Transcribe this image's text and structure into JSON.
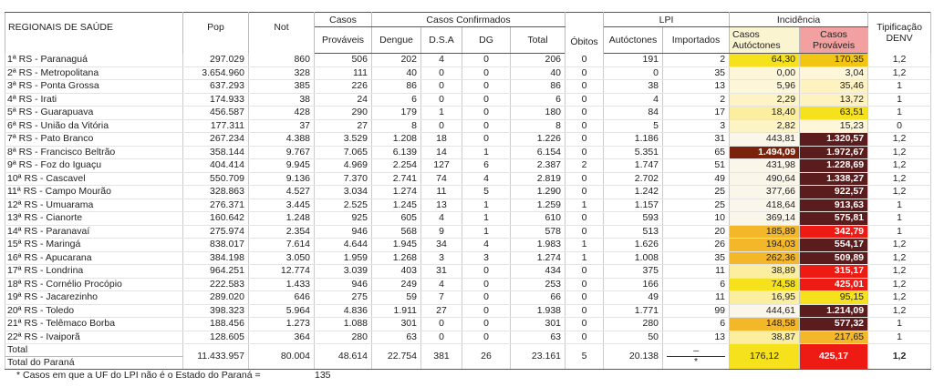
{
  "header": {
    "groups": [
      "Casos",
      "Casos Confirmados",
      "LPI",
      "Incidência"
    ],
    "columns": [
      "REGIONAIS DE SAÚDE",
      "Pop",
      "Not",
      "Prováveis",
      "Dengue",
      "D.S.A",
      "DG",
      "Total",
      "Óbitos",
      "Autóctones",
      "Importados",
      "Casos Autóctones",
      "Casos Prováveis",
      "Tipificação DENV"
    ]
  },
  "rows": [
    {
      "cells": [
        "1ª RS - Paranaguá",
        "297.029",
        "860",
        "506",
        "202",
        "4",
        "0",
        "206",
        "0",
        "191",
        "2",
        "64,30",
        "170,35",
        "1,2"
      ],
      "colors": [
        "#f5e21c",
        "#f1c512"
      ]
    },
    {
      "cells": [
        "2ª RS - Metropolitana",
        "3.654.960",
        "328",
        "111",
        "40",
        "0",
        "0",
        "40",
        "0",
        "0",
        "35",
        "0,00",
        "3,04",
        "1,2"
      ],
      "colors": [
        "#fdf6d8",
        "#fdf6d8"
      ]
    },
    {
      "cells": [
        "3ª RS - Ponta Grossa",
        "637.293",
        "385",
        "226",
        "86",
        "0",
        "0",
        "86",
        "0",
        "38",
        "13",
        "5,96",
        "35,46",
        "1"
      ],
      "colors": [
        "#fdf6d8",
        "#fdf2c0"
      ]
    },
    {
      "cells": [
        "4ª RS - Irati",
        "174.933",
        "38",
        "24",
        "6",
        "0",
        "0",
        "6",
        "0",
        "4",
        "2",
        "2,29",
        "13,72",
        "1"
      ],
      "colors": [
        "#fdf3c4",
        "#fdf2c0"
      ]
    },
    {
      "cells": [
        "5ª RS - Guarapuava",
        "456.587",
        "428",
        "290",
        "179",
        "1",
        "0",
        "180",
        "0",
        "84",
        "17",
        "18,40",
        "63,51",
        "1"
      ],
      "colors": [
        "#fbee9e",
        "#f5e21c"
      ]
    },
    {
      "cells": [
        "6ª RS - União da Vitória",
        "177.311",
        "37",
        "27",
        "8",
        "0",
        "0",
        "8",
        "0",
        "5",
        "3",
        "2,82",
        "15,23",
        "0"
      ],
      "colors": [
        "#fdf3c4",
        "#fdf6d8"
      ]
    },
    {
      "cells": [
        "7ª RS - Pato Branco",
        "267.234",
        "4.388",
        "3.529",
        "1.208",
        "18",
        "0",
        "1.226",
        "0",
        "1.186",
        "31",
        "443,81",
        "1.320,57",
        "1,2"
      ],
      "colors": [
        "#fbf6ea",
        "#5a1c1c"
      ]
    },
    {
      "cells": [
        "8ª RS - Francisco Beltrão",
        "358.144",
        "9.767",
        "7.065",
        "6.139",
        "14",
        "1",
        "6.154",
        "0",
        "5.351",
        "65",
        "1.494,09",
        "1.972,67",
        "1,2"
      ],
      "colors": [
        "#7a220c",
        "#5a1c1c"
      ]
    },
    {
      "cells": [
        "9ª RS - Foz do Iguaçu",
        "404.414",
        "9.945",
        "4.969",
        "2.254",
        "127",
        "6",
        "2.387",
        "2",
        "1.747",
        "51",
        "431,98",
        "1.228,69",
        "1,2"
      ],
      "colors": [
        "#fbf6ea",
        "#5a1c1c"
      ]
    },
    {
      "cells": [
        "10ª RS - Cascavel",
        "550.709",
        "9.136",
        "7.370",
        "2.741",
        "74",
        "4",
        "2.819",
        "0",
        "2.702",
        "49",
        "490,64",
        "1.338,27",
        "1,2"
      ],
      "colors": [
        "#fbf6ea",
        "#5a1c1c"
      ]
    },
    {
      "cells": [
        "11ª RS - Campo Mourão",
        "328.863",
        "4.527",
        "3.034",
        "1.274",
        "11",
        "5",
        "1.290",
        "0",
        "1.242",
        "25",
        "377,66",
        "922,57",
        "1,2"
      ],
      "colors": [
        "#fbf6ea",
        "#5a1c1c"
      ]
    },
    {
      "cells": [
        "12ª RS - Umuarama",
        "276.371",
        "3.445",
        "2.525",
        "1.245",
        "13",
        "1",
        "1.259",
        "1",
        "1.157",
        "25",
        "418,64",
        "913,63",
        "1"
      ],
      "colors": [
        "#fbf6ea",
        "#5a1c1c"
      ]
    },
    {
      "cells": [
        "13ª RS - Cianorte",
        "160.642",
        "1.248",
        "925",
        "605",
        "4",
        "1",
        "610",
        "0",
        "593",
        "10",
        "369,14",
        "575,81",
        "1"
      ],
      "colors": [
        "#fbf6ea",
        "#5a1c1c"
      ]
    },
    {
      "cells": [
        "14ª RS - Paranavaí",
        "275.974",
        "2.354",
        "946",
        "568",
        "9",
        "1",
        "578",
        "0",
        "513",
        "20",
        "185,89",
        "342,79",
        "1"
      ],
      "colors": [
        "#f4b72a",
        "#ee1a14"
      ]
    },
    {
      "cells": [
        "15ª RS - Maringá",
        "838.017",
        "7.614",
        "4.644",
        "1.945",
        "34",
        "4",
        "1.983",
        "1",
        "1.626",
        "26",
        "194,03",
        "554,17",
        "1,2"
      ],
      "colors": [
        "#f4b72a",
        "#5a1c1c"
      ]
    },
    {
      "cells": [
        "16ª RS - Apucarana",
        "384.198",
        "3.050",
        "1.959",
        "1.268",
        "3",
        "3",
        "1.274",
        "1",
        "1.008",
        "35",
        "262,36",
        "509,89",
        "1,2"
      ],
      "colors": [
        "#f4b72a",
        "#5a1c1c"
      ]
    },
    {
      "cells": [
        "17ª RS - Londrina",
        "964.251",
        "12.774",
        "3.039",
        "403",
        "31",
        "0",
        "434",
        "0",
        "375",
        "11",
        "38,89",
        "315,17",
        "1,2"
      ],
      "colors": [
        "#fbee9e",
        "#ee1a14"
      ]
    },
    {
      "cells": [
        "18ª RS - Cornélio Procópio",
        "222.583",
        "1.433",
        "946",
        "249",
        "4",
        "0",
        "253",
        "0",
        "166",
        "6",
        "74,58",
        "425,01",
        "1,2"
      ],
      "colors": [
        "#f5e21c",
        "#ee1a14"
      ]
    },
    {
      "cells": [
        "19ª RS - Jacarezinho",
        "289.020",
        "646",
        "275",
        "59",
        "7",
        "0",
        "66",
        "0",
        "49",
        "11",
        "16,95",
        "95,15",
        "1,2"
      ],
      "colors": [
        "#fbee9e",
        "#f5e21c"
      ]
    },
    {
      "cells": [
        "20ª RS - Toledo",
        "398.323",
        "5.964",
        "4.836",
        "1.911",
        "27",
        "0",
        "1.938",
        "0",
        "1.771",
        "99",
        "444,61",
        "1.214,09",
        "1,2"
      ],
      "colors": [
        "#fbf6ea",
        "#5a1c1c"
      ]
    },
    {
      "cells": [
        "21ª RS - Telêmaco Borba",
        "188.456",
        "1.273",
        "1.088",
        "301",
        "0",
        "0",
        "301",
        "0",
        "280",
        "6",
        "148,58",
        "577,32",
        "1"
      ],
      "colors": [
        "#f4b72a",
        "#5a1c1c"
      ]
    },
    {
      "cells": [
        "22ª RS - Ivaiporã",
        "128.605",
        "364",
        "280",
        "63",
        "0",
        "0",
        "63",
        "0",
        "50",
        "13",
        "38,87",
        "217,65",
        "1"
      ],
      "colors": [
        "#fbee9e",
        "#f4b72a"
      ]
    }
  ],
  "total": {
    "labels": [
      "Total",
      "Total do Paraná"
    ],
    "cells": [
      "11.433.957",
      "80.004",
      "48.614",
      "22.754",
      "381",
      "26",
      "23.161",
      "5",
      "20.138",
      [
        "–",
        "*"
      ],
      "176,12",
      "425,17",
      "1,2"
    ],
    "colors": [
      "#f5e21c",
      "#ee1a14"
    ]
  },
  "footnote": {
    "text": "* Casos em que a UF do LPI não é o Estado do Paraná =",
    "value": "135"
  }
}
